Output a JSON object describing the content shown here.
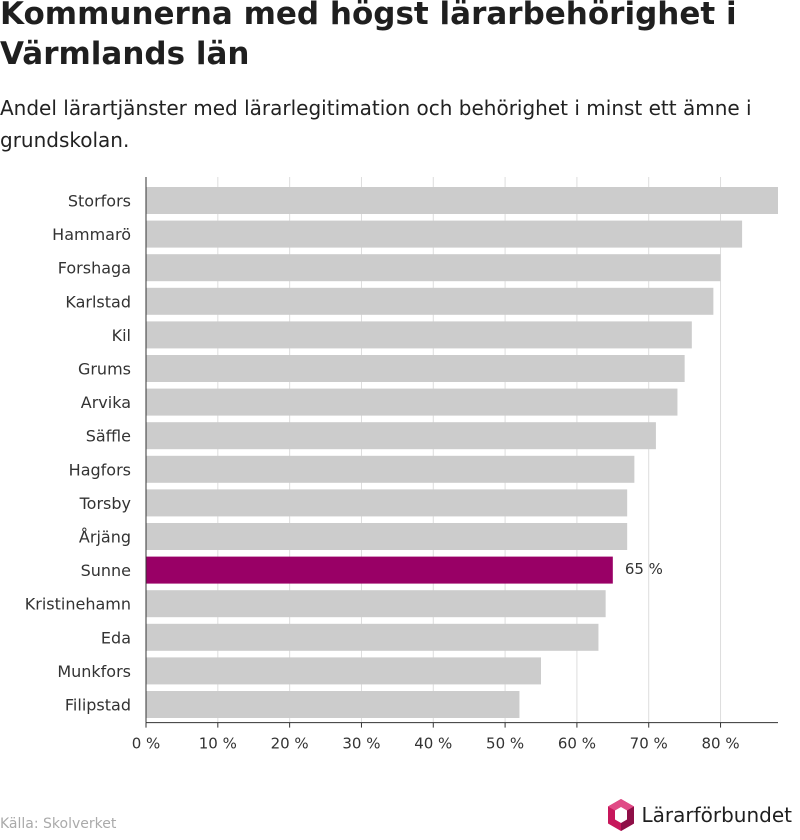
{
  "title": "Kommunerna med högst lärarbehörighet i Värmlands län",
  "subtitle": "Andel lärartjänster med lärarlegitimation och behörighet i minst ett ämne i grundskolan.",
  "source": "Källa: Skolverket",
  "brand": "Lärarförbundet",
  "colors": {
    "bar": "#cccccc",
    "highlight": "#990066",
    "grid": "#dddddd",
    "axis": "#333333"
  },
  "chart_data": {
    "type": "bar",
    "orientation": "horizontal",
    "categories": [
      "Storfors",
      "Hammarö",
      "Forshaga",
      "Karlstad",
      "Kil",
      "Grums",
      "Arvika",
      "Säffle",
      "Hagfors",
      "Torsby",
      "Årjäng",
      "Sunne",
      "Kristinehamn",
      "Eda",
      "Munkfors",
      "Filipstad"
    ],
    "values": [
      88,
      83,
      80,
      79,
      76,
      75,
      74,
      71,
      68,
      67,
      67,
      65,
      64,
      63,
      55,
      52
    ],
    "highlight": "Sunne",
    "data_labels": [
      {
        "category": "Sunne",
        "text": "65 %"
      }
    ],
    "xlim": [
      0,
      88
    ],
    "xticks": [
      0,
      10,
      20,
      30,
      40,
      50,
      60,
      70,
      80
    ],
    "xtick_labels": [
      "0 %",
      "10 %",
      "20 %",
      "30 %",
      "40 %",
      "50 %",
      "60 %",
      "70 %",
      "80 %"
    ],
    "grid": true
  }
}
